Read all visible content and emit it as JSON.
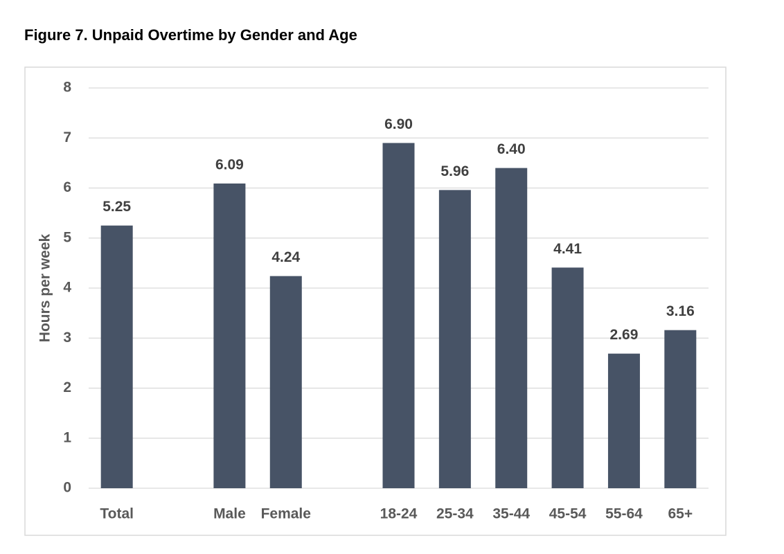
{
  "chart_data": {
    "type": "bar",
    "title": "Figure 7. Unpaid Overtime by Gender and Age",
    "y_label": "Hours per week",
    "categories": [
      "Total",
      null,
      "Male",
      "Female",
      null,
      "18-24",
      "25-34",
      "35-44",
      "45-54",
      "55-64",
      "65+"
    ],
    "values": [
      5.25,
      null,
      6.09,
      4.24,
      null,
      6.9,
      5.96,
      6.4,
      4.41,
      2.69,
      3.16
    ],
    "value_labels": [
      "5.25",
      null,
      "6.09",
      "4.24",
      null,
      "6.90",
      "5.96",
      "6.40",
      "4.41",
      "2.69",
      "3.16"
    ],
    "color": "#475366",
    "ylim": [
      0,
      8
    ],
    "yticks": [
      0,
      1,
      2,
      3,
      4,
      5,
      6,
      7,
      8
    ],
    "grid": true
  }
}
